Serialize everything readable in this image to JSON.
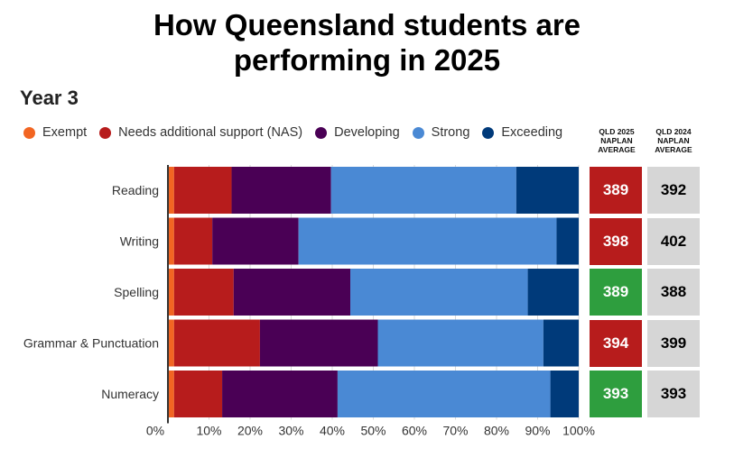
{
  "title_line1": "How Queensland students are",
  "title_line2": "performing in 2025",
  "subtitle": "Year 3",
  "legend": [
    {
      "label": "Exempt",
      "color": "#f26522"
    },
    {
      "label": "Needs additional support (NAS)",
      "color": "#b71c1c"
    },
    {
      "label": "Developing",
      "color": "#4a0055"
    },
    {
      "label": "Strong",
      "color": "#4a89d4"
    },
    {
      "label": "Exceeding",
      "color": "#003a7a"
    }
  ],
  "col_heads": {
    "qld2025": "QLD 2025\nNAPLAN\nAVERAGE",
    "qld2024": "QLD 2024\nNAPLAN\nAVERAGE"
  },
  "score_colors": {
    "below": "#b71c1c",
    "above": "#2e9e3e",
    "prev_bg": "#d6d6d6"
  },
  "chart_data": {
    "type": "bar",
    "orientation": "horizontal",
    "stacked": true,
    "categories": [
      "Reading",
      "Writing",
      "Spelling",
      "Grammar & Punctuation",
      "Numeracy"
    ],
    "series": [
      {
        "name": "Exempt",
        "color": "#f26522",
        "values": [
          1.5,
          1.5,
          1.5,
          1.5,
          1.5
        ]
      },
      {
        "name": "Needs additional support (NAS)",
        "color": "#b71c1c",
        "values": [
          14.0,
          9.3,
          14.5,
          20.9,
          11.7
        ]
      },
      {
        "name": "Developing",
        "color": "#4a0055",
        "values": [
          24.2,
          21.0,
          28.4,
          28.7,
          28.1
        ]
      },
      {
        "name": "Strong",
        "color": "#4a89d4",
        "values": [
          45.1,
          62.8,
          43.2,
          40.3,
          51.8
        ]
      },
      {
        "name": "Exceeding",
        "color": "#003a7a",
        "values": [
          15.2,
          5.4,
          12.4,
          8.6,
          6.9
        ]
      }
    ],
    "xlim": [
      0,
      100
    ],
    "x_ticks": [
      "0%",
      "10%",
      "20%",
      "30%",
      "40%",
      "50%",
      "60%",
      "70%",
      "80%",
      "90%",
      "100%"
    ],
    "grid": true,
    "legend_position": "top-left",
    "qld2025_average": [
      389,
      398,
      389,
      394,
      393
    ],
    "qld2024_average": [
      392,
      402,
      388,
      399,
      393
    ]
  }
}
